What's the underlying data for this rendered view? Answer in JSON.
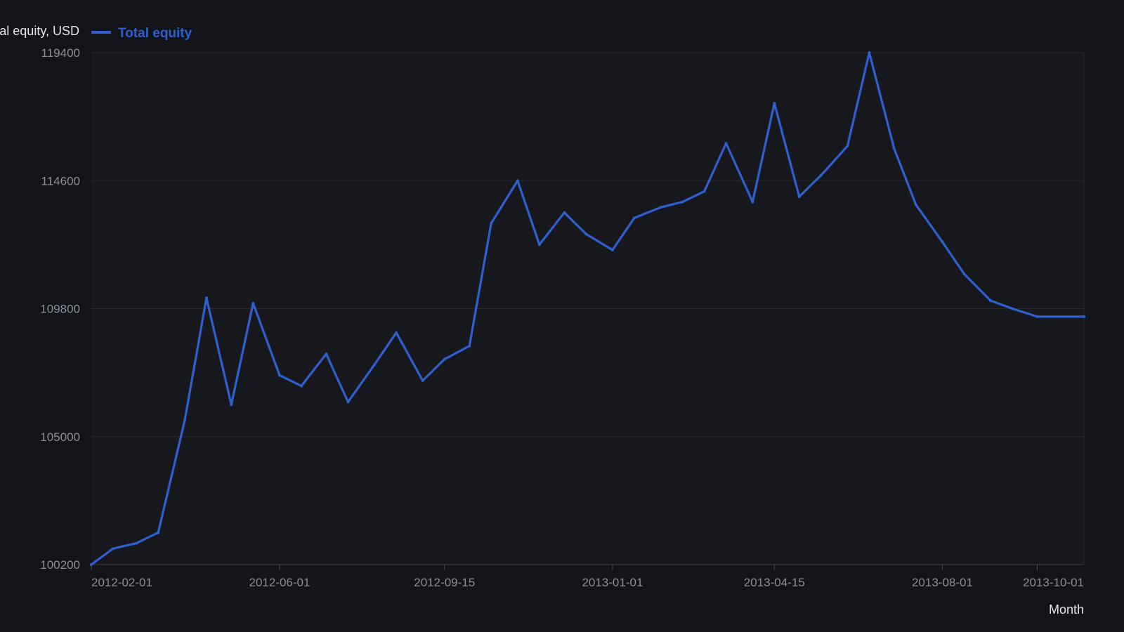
{
  "chart_data": {
    "type": "line",
    "ylabel": "Total equity, USD",
    "xlabel": "Month",
    "legend": {
      "position": "top-left",
      "entries": [
        "Total equity"
      ]
    },
    "grid": true,
    "ylim": [
      100200,
      119400
    ],
    "y_ticks": [
      100200,
      105000,
      109800,
      114600,
      119400
    ],
    "xlim": [
      "2012-02-01",
      "2013-10-31"
    ],
    "x_ticks": [
      "2012-02-01",
      "2012-06-01",
      "2012-09-15",
      "2013-01-01",
      "2013-04-15",
      "2013-08-01",
      "2013-10-01"
    ],
    "colors": {
      "background": "#121419",
      "plot_background": "#16181d",
      "series": "#2f5fcf",
      "grid": "#272a31"
    },
    "series": [
      {
        "name": "Total equity",
        "x": [
          "2012-02-01",
          "2012-02-15",
          "2012-03-01",
          "2012-03-15",
          "2012-04-01",
          "2012-04-15",
          "2012-05-01",
          "2012-05-15",
          "2012-06-01",
          "2012-06-15",
          "2012-07-01",
          "2012-07-15",
          "2012-08-01",
          "2012-08-15",
          "2012-09-01",
          "2012-09-15",
          "2012-10-01",
          "2012-10-15",
          "2012-11-01",
          "2012-11-15",
          "2012-12-01",
          "2012-12-15",
          "2013-01-01",
          "2013-01-15",
          "2013-02-01",
          "2013-02-15",
          "2013-03-01",
          "2013-03-15",
          "2013-04-01",
          "2013-04-15",
          "2013-05-01",
          "2013-05-15",
          "2013-06-01",
          "2013-06-15",
          "2013-07-01",
          "2013-07-15",
          "2013-08-01",
          "2013-08-15",
          "2013-09-01",
          "2013-09-15",
          "2013-10-01",
          "2013-10-31"
        ],
        "values": [
          100200,
          100800,
          101000,
          101400,
          105600,
          110200,
          106200,
          110000,
          107300,
          106900,
          108100,
          106300,
          107700,
          108900,
          107100,
          107900,
          108400,
          113000,
          114600,
          112200,
          113400,
          112600,
          112000,
          113200,
          113600,
          113800,
          114200,
          116000,
          113800,
          117500,
          114000,
          114800,
          115900,
          119400,
          115800,
          113700,
          112300,
          111100,
          110100,
          109800,
          109500,
          109500
        ]
      }
    ]
  }
}
